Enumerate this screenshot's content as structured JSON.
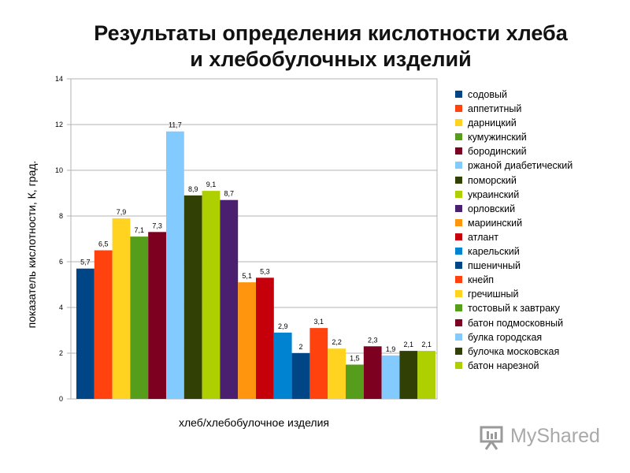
{
  "title_line1": "Результаты определения кислотности хлеба",
  "title_line2": "и хлебобулочных изделий",
  "watermark": "MyShared",
  "chart_data": {
    "type": "bar",
    "ylabel": "показатель кислотности, К, град.",
    "xlabel": "хлеб/хлебобулочное изделия",
    "ylim": [
      0,
      14
    ],
    "yticks": [
      0,
      2,
      4,
      6,
      8,
      10,
      12,
      14
    ],
    "grid": true,
    "legend_position": "right",
    "series": [
      {
        "name": "содовый",
        "value": 5.7,
        "label": "5,7",
        "color": "#004586"
      },
      {
        "name": "аппетитный",
        "value": 6.5,
        "label": "6,5",
        "color": "#ff420e"
      },
      {
        "name": "дарницкий",
        "value": 7.9,
        "label": "7,9",
        "color": "#ffd320"
      },
      {
        "name": "кумужинский",
        "value": 7.1,
        "label": "7,1",
        "color": "#579d1c"
      },
      {
        "name": "бородинский",
        "value": 7.3,
        "label": "7,3",
        "color": "#7e0021"
      },
      {
        "name": "ржаной диабетический",
        "value": 11.7,
        "label": "11,7",
        "color": "#83caff"
      },
      {
        "name": "поморский",
        "value": 8.9,
        "label": "8,9",
        "color": "#314004"
      },
      {
        "name": "украинский",
        "value": 9.1,
        "label": "9,1",
        "color": "#aecf00"
      },
      {
        "name": "орловский",
        "value": 8.7,
        "label": "8,7",
        "color": "#4b1f6f"
      },
      {
        "name": "мариинский",
        "value": 5.1,
        "label": "5,1",
        "color": "#ff950e"
      },
      {
        "name": "атлант",
        "value": 5.3,
        "label": "5,3",
        "color": "#c5000b"
      },
      {
        "name": "карельский",
        "value": 2.9,
        "label": "2,9",
        "color": "#0084d1"
      },
      {
        "name": "пшеничный",
        "value": 2.0,
        "label": "2",
        "color": "#004586"
      },
      {
        "name": "кнейп",
        "value": 3.1,
        "label": "3,1",
        "color": "#ff420e"
      },
      {
        "name": "гречишный",
        "value": 2.2,
        "label": "2,2",
        "color": "#ffd320"
      },
      {
        "name": "тостовый к завтраку",
        "value": 1.5,
        "label": "1,5",
        "color": "#579d1c"
      },
      {
        "name": "батон подмосковный",
        "value": 2.3,
        "label": "2,3",
        "color": "#7e0021"
      },
      {
        "name": "булка городская",
        "value": 1.9,
        "label": "1,9",
        "color": "#83caff"
      },
      {
        "name": "булочка московская",
        "value": 2.1,
        "label": "2,1",
        "color": "#314004"
      },
      {
        "name": "батон нарезной",
        "value": 2.1,
        "label": "2,1",
        "color": "#aecf00"
      }
    ]
  }
}
